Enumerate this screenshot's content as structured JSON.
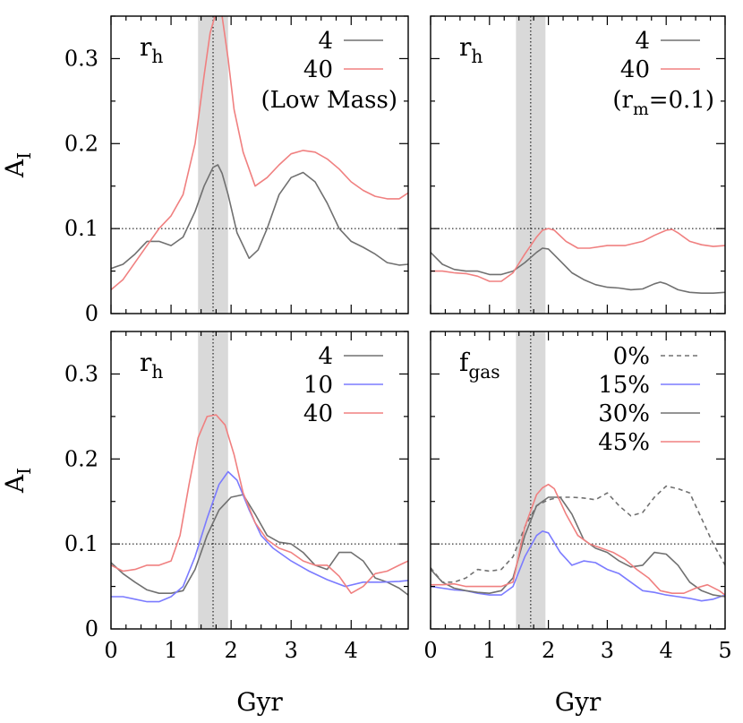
{
  "chart_data": [
    {
      "type": "line",
      "panel_label": "r",
      "panel_label_sub": "h",
      "annotation": "(Low Mass)",
      "ylabel": "A",
      "ylabel_sub": "I",
      "xlabel": "",
      "xlim": [
        0,
        4.95
      ],
      "ylim": [
        0,
        0.35
      ],
      "yticks": [
        "0",
        "0.1",
        "0.2",
        "0.3"
      ],
      "xticks": [],
      "shade": [
        1.45,
        1.95
      ],
      "vline": 1.7,
      "hline": 0.1,
      "series": [
        {
          "name": "4",
          "color": "#707070",
          "dash": false,
          "x": [
            0,
            0.2,
            0.4,
            0.6,
            0.8,
            1.0,
            1.2,
            1.4,
            1.55,
            1.7,
            1.78,
            1.85,
            1.95,
            2.1,
            2.3,
            2.45,
            2.6,
            2.8,
            3.0,
            3.2,
            3.4,
            3.6,
            3.8,
            4.0,
            4.2,
            4.4,
            4.6,
            4.8,
            4.95
          ],
          "y": [
            0.053,
            0.058,
            0.07,
            0.085,
            0.085,
            0.08,
            0.09,
            0.12,
            0.15,
            0.172,
            0.175,
            0.165,
            0.14,
            0.095,
            0.065,
            0.075,
            0.1,
            0.14,
            0.16,
            0.166,
            0.155,
            0.13,
            0.1,
            0.085,
            0.078,
            0.07,
            0.06,
            0.057,
            0.058
          ]
        },
        {
          "name": "40",
          "color": "#f08080",
          "dash": false,
          "x": [
            0,
            0.2,
            0.4,
            0.6,
            0.8,
            1.0,
            1.2,
            1.4,
            1.55,
            1.65,
            1.75,
            1.85,
            1.95,
            2.05,
            2.2,
            2.4,
            2.6,
            2.8,
            3.0,
            3.2,
            3.4,
            3.6,
            3.8,
            4.0,
            4.2,
            4.4,
            4.6,
            4.8,
            4.95
          ],
          "y": [
            0.028,
            0.04,
            0.06,
            0.08,
            0.1,
            0.115,
            0.14,
            0.2,
            0.28,
            0.33,
            0.355,
            0.35,
            0.3,
            0.24,
            0.19,
            0.15,
            0.16,
            0.175,
            0.188,
            0.192,
            0.19,
            0.182,
            0.17,
            0.155,
            0.145,
            0.138,
            0.135,
            0.135,
            0.142
          ]
        }
      ]
    },
    {
      "type": "line",
      "panel_label": "r",
      "panel_label_sub": "h",
      "annotation": "(r",
      "annotation_sub": "m",
      "annotation_tail": "=0.1)",
      "xlabel": "",
      "ylabel": "",
      "xlim": [
        0,
        5
      ],
      "ylim": [
        0,
        0.35
      ],
      "yticks": [],
      "xticks": [],
      "shade": [
        1.45,
        1.95
      ],
      "vline": 1.7,
      "hline": 0.1,
      "series": [
        {
          "name": "4",
          "color": "#707070",
          "dash": false,
          "x": [
            0,
            0.2,
            0.4,
            0.6,
            0.8,
            1.0,
            1.2,
            1.4,
            1.6,
            1.8,
            1.9,
            2.0,
            2.2,
            2.4,
            2.6,
            2.8,
            3.0,
            3.2,
            3.4,
            3.6,
            3.8,
            3.9,
            4.0,
            4.2,
            4.4,
            4.6,
            4.8,
            5.0
          ],
          "y": [
            0.072,
            0.058,
            0.052,
            0.05,
            0.05,
            0.046,
            0.046,
            0.05,
            0.06,
            0.072,
            0.077,
            0.076,
            0.062,
            0.048,
            0.04,
            0.034,
            0.031,
            0.03,
            0.028,
            0.029,
            0.035,
            0.037,
            0.035,
            0.028,
            0.025,
            0.024,
            0.024,
            0.025
          ]
        },
        {
          "name": "40",
          "color": "#f08080",
          "dash": false,
          "x": [
            0,
            0.2,
            0.4,
            0.6,
            0.8,
            1.0,
            1.2,
            1.4,
            1.6,
            1.8,
            1.9,
            2.0,
            2.1,
            2.3,
            2.5,
            2.7,
            3.0,
            3.3,
            3.6,
            3.8,
            4.0,
            4.1,
            4.2,
            4.4,
            4.6,
            4.8,
            5.0
          ],
          "y": [
            0.05,
            0.05,
            0.048,
            0.047,
            0.044,
            0.038,
            0.038,
            0.048,
            0.07,
            0.09,
            0.098,
            0.1,
            0.098,
            0.085,
            0.077,
            0.077,
            0.08,
            0.08,
            0.085,
            0.092,
            0.098,
            0.099,
            0.095,
            0.085,
            0.081,
            0.079,
            0.08
          ]
        }
      ]
    },
    {
      "type": "line",
      "panel_label": "r",
      "panel_label_sub": "h",
      "xlabel": "Gyr",
      "ylabel": "A",
      "ylabel_sub": "I",
      "xlim": [
        0,
        4.95
      ],
      "ylim": [
        0,
        0.35
      ],
      "yticks": [
        "0",
        "0.1",
        "0.2",
        "0.3"
      ],
      "xticks": [
        "0",
        "1",
        "2",
        "3",
        "4"
      ],
      "shade": [
        1.45,
        1.95
      ],
      "vline": 1.7,
      "hline": 0.1,
      "series": [
        {
          "name": "4",
          "color": "#707070",
          "dash": false,
          "x": [
            0,
            0.2,
            0.4,
            0.6,
            0.8,
            1.0,
            1.2,
            1.4,
            1.6,
            1.8,
            2.0,
            2.2,
            2.4,
            2.6,
            2.8,
            3.0,
            3.2,
            3.4,
            3.6,
            3.8,
            4.0,
            4.2,
            4.4,
            4.6,
            4.8,
            4.95
          ],
          "y": [
            0.078,
            0.065,
            0.055,
            0.046,
            0.042,
            0.042,
            0.045,
            0.07,
            0.11,
            0.14,
            0.155,
            0.158,
            0.135,
            0.11,
            0.102,
            0.1,
            0.09,
            0.075,
            0.07,
            0.09,
            0.09,
            0.08,
            0.06,
            0.055,
            0.048,
            0.04
          ]
        },
        {
          "name": "10",
          "color": "#7b7bff",
          "dash": false,
          "x": [
            0,
            0.2,
            0.4,
            0.6,
            0.8,
            1.0,
            1.2,
            1.4,
            1.6,
            1.8,
            1.95,
            2.1,
            2.3,
            2.5,
            2.7,
            3.0,
            3.3,
            3.6,
            3.9,
            4.2,
            4.5,
            4.8,
            4.95
          ],
          "y": [
            0.038,
            0.038,
            0.035,
            0.032,
            0.032,
            0.038,
            0.05,
            0.085,
            0.13,
            0.17,
            0.185,
            0.175,
            0.14,
            0.11,
            0.095,
            0.08,
            0.068,
            0.058,
            0.05,
            0.055,
            0.055,
            0.056,
            0.057
          ]
        },
        {
          "name": "40",
          "color": "#f08080",
          "dash": false,
          "x": [
            0,
            0.2,
            0.4,
            0.6,
            0.8,
            1.0,
            1.15,
            1.3,
            1.45,
            1.6,
            1.75,
            1.9,
            2.05,
            2.2,
            2.4,
            2.6,
            2.8,
            3.0,
            3.2,
            3.4,
            3.6,
            3.8,
            4.0,
            4.2,
            4.4,
            4.6,
            4.8,
            4.95
          ],
          "y": [
            0.075,
            0.068,
            0.07,
            0.075,
            0.075,
            0.08,
            0.11,
            0.17,
            0.225,
            0.25,
            0.252,
            0.24,
            0.205,
            0.16,
            0.125,
            0.105,
            0.095,
            0.09,
            0.08,
            0.075,
            0.075,
            0.062,
            0.042,
            0.05,
            0.065,
            0.068,
            0.075,
            0.08
          ]
        }
      ]
    },
    {
      "type": "line",
      "panel_label": "f",
      "panel_label_sub": "gas",
      "xlabel": "Gyr",
      "ylabel": "",
      "xlim": [
        0,
        5
      ],
      "ylim": [
        0,
        0.35
      ],
      "yticks": [],
      "xticks": [
        "0",
        "1",
        "2",
        "3",
        "4",
        "5"
      ],
      "shade": [
        1.45,
        1.95
      ],
      "vline": 1.7,
      "hline": 0.1,
      "series": [
        {
          "name": "0%",
          "color": "#707070",
          "dash": true,
          "x": [
            0,
            0.2,
            0.4,
            0.6,
            0.8,
            1.0,
            1.2,
            1.4,
            1.6,
            1.8,
            2.0,
            2.2,
            2.4,
            2.6,
            2.8,
            3.0,
            3.2,
            3.4,
            3.6,
            3.8,
            4.0,
            4.2,
            4.4,
            4.6,
            4.8,
            5.0
          ],
          "y": [
            0.072,
            0.055,
            0.055,
            0.06,
            0.07,
            0.068,
            0.07,
            0.085,
            0.12,
            0.145,
            0.152,
            0.155,
            0.155,
            0.154,
            0.152,
            0.16,
            0.145,
            0.133,
            0.137,
            0.155,
            0.168,
            0.165,
            0.16,
            0.13,
            0.1,
            0.075
          ]
        },
        {
          "name": "15%",
          "color": "#7b7bff",
          "dash": false,
          "x": [
            0,
            0.2,
            0.4,
            0.6,
            0.8,
            1.0,
            1.2,
            1.4,
            1.6,
            1.8,
            1.9,
            2.0,
            2.2,
            2.4,
            2.6,
            2.8,
            3.0,
            3.2,
            3.4,
            3.6,
            3.8,
            4.0,
            4.2,
            4.4,
            4.6,
            4.8,
            5.0
          ],
          "y": [
            0.05,
            0.048,
            0.046,
            0.045,
            0.042,
            0.04,
            0.04,
            0.05,
            0.085,
            0.11,
            0.115,
            0.113,
            0.09,
            0.075,
            0.08,
            0.078,
            0.07,
            0.065,
            0.055,
            0.045,
            0.043,
            0.04,
            0.038,
            0.036,
            0.033,
            0.035,
            0.04
          ]
        },
        {
          "name": "30%",
          "color": "#707070",
          "dash": false,
          "x": [
            0,
            0.2,
            0.4,
            0.6,
            0.8,
            1.0,
            1.2,
            1.4,
            1.6,
            1.8,
            2.0,
            2.2,
            2.4,
            2.6,
            2.8,
            3.0,
            3.2,
            3.4,
            3.6,
            3.8,
            4.0,
            4.2,
            4.4,
            4.6,
            4.8,
            5.0
          ],
          "y": [
            0.07,
            0.055,
            0.048,
            0.045,
            0.043,
            0.042,
            0.045,
            0.06,
            0.11,
            0.145,
            0.155,
            0.155,
            0.135,
            0.105,
            0.095,
            0.09,
            0.08,
            0.073,
            0.075,
            0.09,
            0.088,
            0.075,
            0.055,
            0.045,
            0.04,
            0.038
          ]
        },
        {
          "name": "45%",
          "color": "#f08080",
          "dash": false,
          "x": [
            0,
            0.2,
            0.4,
            0.6,
            0.8,
            1.0,
            1.2,
            1.4,
            1.6,
            1.8,
            1.9,
            2.0,
            2.1,
            2.3,
            2.5,
            2.7,
            2.9,
            3.1,
            3.3,
            3.5,
            3.7,
            3.9,
            4.1,
            4.3,
            4.5,
            4.7,
            4.9,
            5.0
          ],
          "y": [
            0.052,
            0.052,
            0.053,
            0.05,
            0.05,
            0.05,
            0.05,
            0.055,
            0.12,
            0.158,
            0.166,
            0.17,
            0.165,
            0.135,
            0.11,
            0.1,
            0.095,
            0.09,
            0.082,
            0.07,
            0.06,
            0.045,
            0.042,
            0.042,
            0.048,
            0.052,
            0.045,
            0.04
          ]
        }
      ]
    }
  ]
}
